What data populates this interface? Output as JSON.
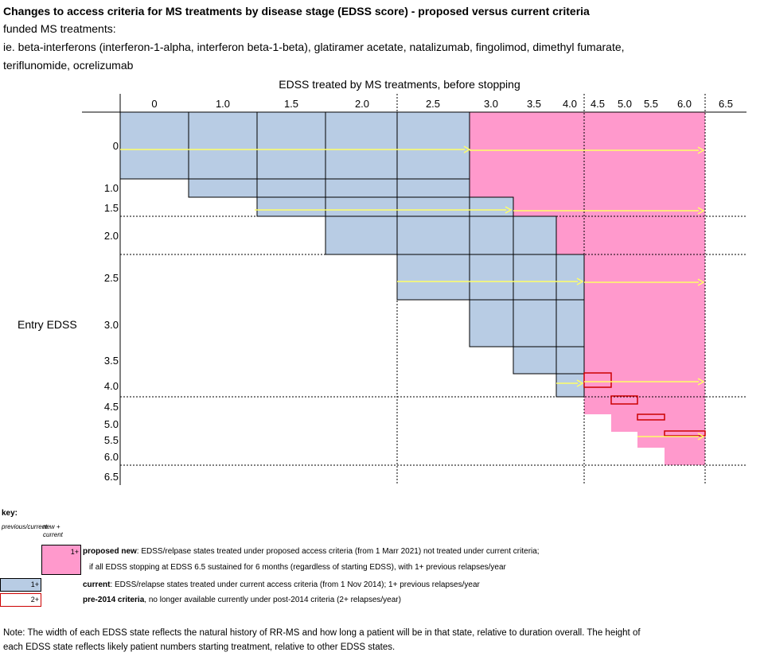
{
  "title": "Changes to access criteria for MS treatments by disease stage (EDSS score) - proposed versus current criteria",
  "subtitle_line1": "funded MS treatments:",
  "subtitle_line2": "ie. beta-interferons (interferon-1-alpha, interferon beta-1-beta), glatiramer acetate, natalizumab, fingolimod, dimethyl fumarate,",
  "subtitle_line3": "teriflunomide, ocrelizumab",
  "colors": {
    "current": "#b8cce4",
    "proposed": "#ff99cc",
    "pre2014": "#cc0000",
    "arrow": "#ffff66",
    "grid": "#000000"
  },
  "chart_data": {
    "type": "diagram",
    "x_axis_label": "EDSS treated by MS treatments, before stopping",
    "y_axis_label": "Entry EDSS",
    "x_ticks": [
      "0",
      "1.0",
      "1.5",
      "2.0",
      "2.5",
      "3.0",
      "3.5",
      "4.0",
      "4.5",
      "5.0",
      "5.5",
      "6.0",
      "6.5"
    ],
    "y_ticks": [
      "0",
      "1.0",
      "1.5",
      "2.0",
      "2.5",
      "3.0",
      "3.5",
      "4.0",
      "4.5",
      "5.0",
      "5.5",
      "6.0",
      "6.5"
    ],
    "states": [
      "0",
      "1.0",
      "1.5",
      "2.0",
      "2.5",
      "3.0",
      "3.5",
      "4.0",
      "4.5",
      "5.0",
      "5.5",
      "6.0",
      "6.5"
    ],
    "current_treated_range": [
      {
        "entry": "0",
        "stop_from": "0",
        "stop_to": "2.5"
      },
      {
        "entry": "1.0",
        "stop_from": "1.0",
        "stop_to": "2.5"
      },
      {
        "entry": "1.5",
        "stop_from": "1.5",
        "stop_to": "3.0"
      },
      {
        "entry": "2.0",
        "stop_from": "2.0",
        "stop_to": "3.5"
      },
      {
        "entry": "2.5",
        "stop_from": "2.5",
        "stop_to": "4.0"
      },
      {
        "entry": "3.0",
        "stop_from": "3.0",
        "stop_to": "4.0"
      },
      {
        "entry": "3.5",
        "stop_from": "3.5",
        "stop_to": "4.0"
      },
      {
        "entry": "4.0",
        "stop_from": "4.0",
        "stop_to": "4.0"
      }
    ],
    "proposed_new_range": [
      {
        "entry": "0",
        "stop_from": "3.0",
        "stop_to": "6.0"
      },
      {
        "entry": "1.0",
        "stop_from": "3.0",
        "stop_to": "6.0"
      },
      {
        "entry": "1.5",
        "stop_from": "3.5",
        "stop_to": "6.0"
      },
      {
        "entry": "2.0",
        "stop_from": "4.0",
        "stop_to": "6.0"
      },
      {
        "entry": "2.5",
        "stop_from": "4.5",
        "stop_to": "6.0"
      },
      {
        "entry": "3.0",
        "stop_from": "4.5",
        "stop_to": "6.0"
      },
      {
        "entry": "3.5",
        "stop_from": "4.5",
        "stop_to": "6.0"
      },
      {
        "entry": "4.0",
        "stop_from": "4.5",
        "stop_to": "6.0"
      },
      {
        "entry": "4.5",
        "stop_from": "4.5",
        "stop_to": "6.0"
      },
      {
        "entry": "5.0",
        "stop_from": "5.0",
        "stop_to": "6.0"
      },
      {
        "entry": "5.5",
        "stop_from": "5.5",
        "stop_to": "6.0"
      },
      {
        "entry": "6.0",
        "stop_from": "6.0",
        "stop_to": "6.0"
      }
    ],
    "pre_2014_states": [
      "4.5",
      "5.0",
      "5.5",
      "6.0"
    ],
    "arrows_from_entry": [
      "0",
      "1.5",
      "2.5",
      "4.0",
      "5.5"
    ]
  },
  "key": {
    "heading": "key:",
    "col1": "previous/current",
    "col2": "new + current",
    "proposed_box": "1+",
    "current_box": "1+",
    "pre2014_box": "2+",
    "proposed_bold": "proposed new",
    "proposed_text": ": EDSS/relpase states treated under proposed access criteria (from 1 Marr 2021) not treated under current criteria;",
    "proposed_text2": "if all EDSS stopping at EDSS 6.5 sustained for 6 months (regardless of starting EDSS), with 1+ previous relapses/year",
    "current_bold": "current",
    "current_text": ": EDSS/relapse states treated under current access criteria (from 1 Nov 2014); 1+ previous relapses/year",
    "pre2014_bold": "pre-2014 criteria",
    "pre2014_text": ", no longer available currently under post-2014 criteria (2+ relapses/year)"
  },
  "note_line1": "Note: The width of each EDSS state reflects the natural history of RR-MS and how long a patient will be in that state, relative to duration overall. The height of",
  "note_line2": "each EDSS state reflects likely patient numbers starting treatment, relative to other EDSS states."
}
